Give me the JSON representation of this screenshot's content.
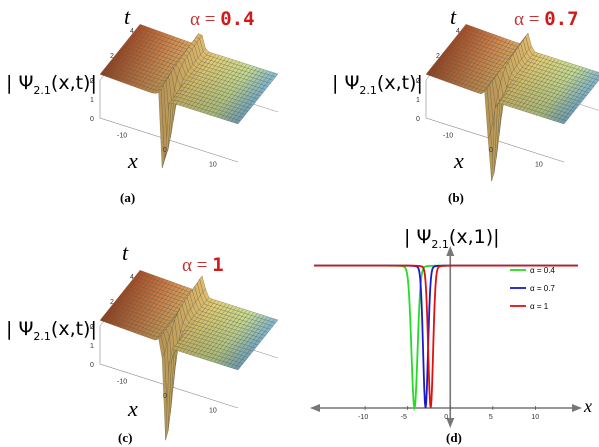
{
  "chart_data": [
    {
      "type": "surface3d",
      "panel": "(a)",
      "title_param": {
        "symbol": "α",
        "eq": "=",
        "value": "0.4"
      },
      "zlabel_main": "| Ψ",
      "zlabel_sub": "2.1",
      "zlabel_tail": "(x,t)|",
      "ylabel": "t",
      "xlabel": "x",
      "t_ticks": [
        "4",
        "2",
        "0"
      ],
      "x_ticks": [
        "-10",
        "0",
        "10"
      ],
      "z_ticks": [
        "2",
        "1",
        "0"
      ],
      "dip_position_x": -1.2
    },
    {
      "type": "surface3d",
      "panel": "(b)",
      "title_param": {
        "symbol": "α",
        "eq": "=",
        "value": "0.7"
      },
      "zlabel_main": "| Ψ",
      "zlabel_sub": "2.1",
      "zlabel_tail": "(x,t)|",
      "ylabel": "t",
      "xlabel": "x",
      "t_ticks": [
        "4",
        "2",
        "0"
      ],
      "x_ticks": [
        "-10",
        "0",
        "10"
      ],
      "z_ticks": [
        "2",
        "1",
        "0"
      ],
      "dip_position_x": -1.0
    },
    {
      "type": "surface3d",
      "panel": "(c)",
      "title_param": {
        "symbol": "α",
        "eq": "=",
        "value": "1"
      },
      "zlabel_main": "| Ψ",
      "zlabel_sub": "2.1",
      "zlabel_tail": "(x,t)|",
      "ylabel": "t",
      "xlabel": "x",
      "t_ticks": [
        "4",
        "2",
        "0"
      ],
      "x_ticks": [
        "-10",
        "0",
        "10"
      ],
      "z_ticks": [
        "2",
        "1",
        "0"
      ],
      "dip_position_x": -0.8
    },
    {
      "type": "line",
      "panel": "(d)",
      "ylabel_main": "| Ψ",
      "ylabel_sub": "2.1",
      "ylabel_tail": "(x,1)|",
      "xlabel": "x",
      "xlim": [
        -16,
        15
      ],
      "ylim": [
        0,
        2.35
      ],
      "x_ticks": [
        -10,
        -5,
        0,
        5,
        10
      ],
      "series": [
        {
          "name": "α = 0.4",
          "color": "#22dd22",
          "dip_center": -4.2,
          "dip_width": 0.5
        },
        {
          "name": "α = 0.7",
          "color": "#1a1acc",
          "dip_center": -2.9,
          "dip_width": 0.4
        },
        {
          "name": "α = 1",
          "color": "#dd1111",
          "dip_center": -2.3,
          "dip_width": 0.4
        }
      ],
      "baseline": 2.2,
      "legend_position": "top-right"
    }
  ]
}
